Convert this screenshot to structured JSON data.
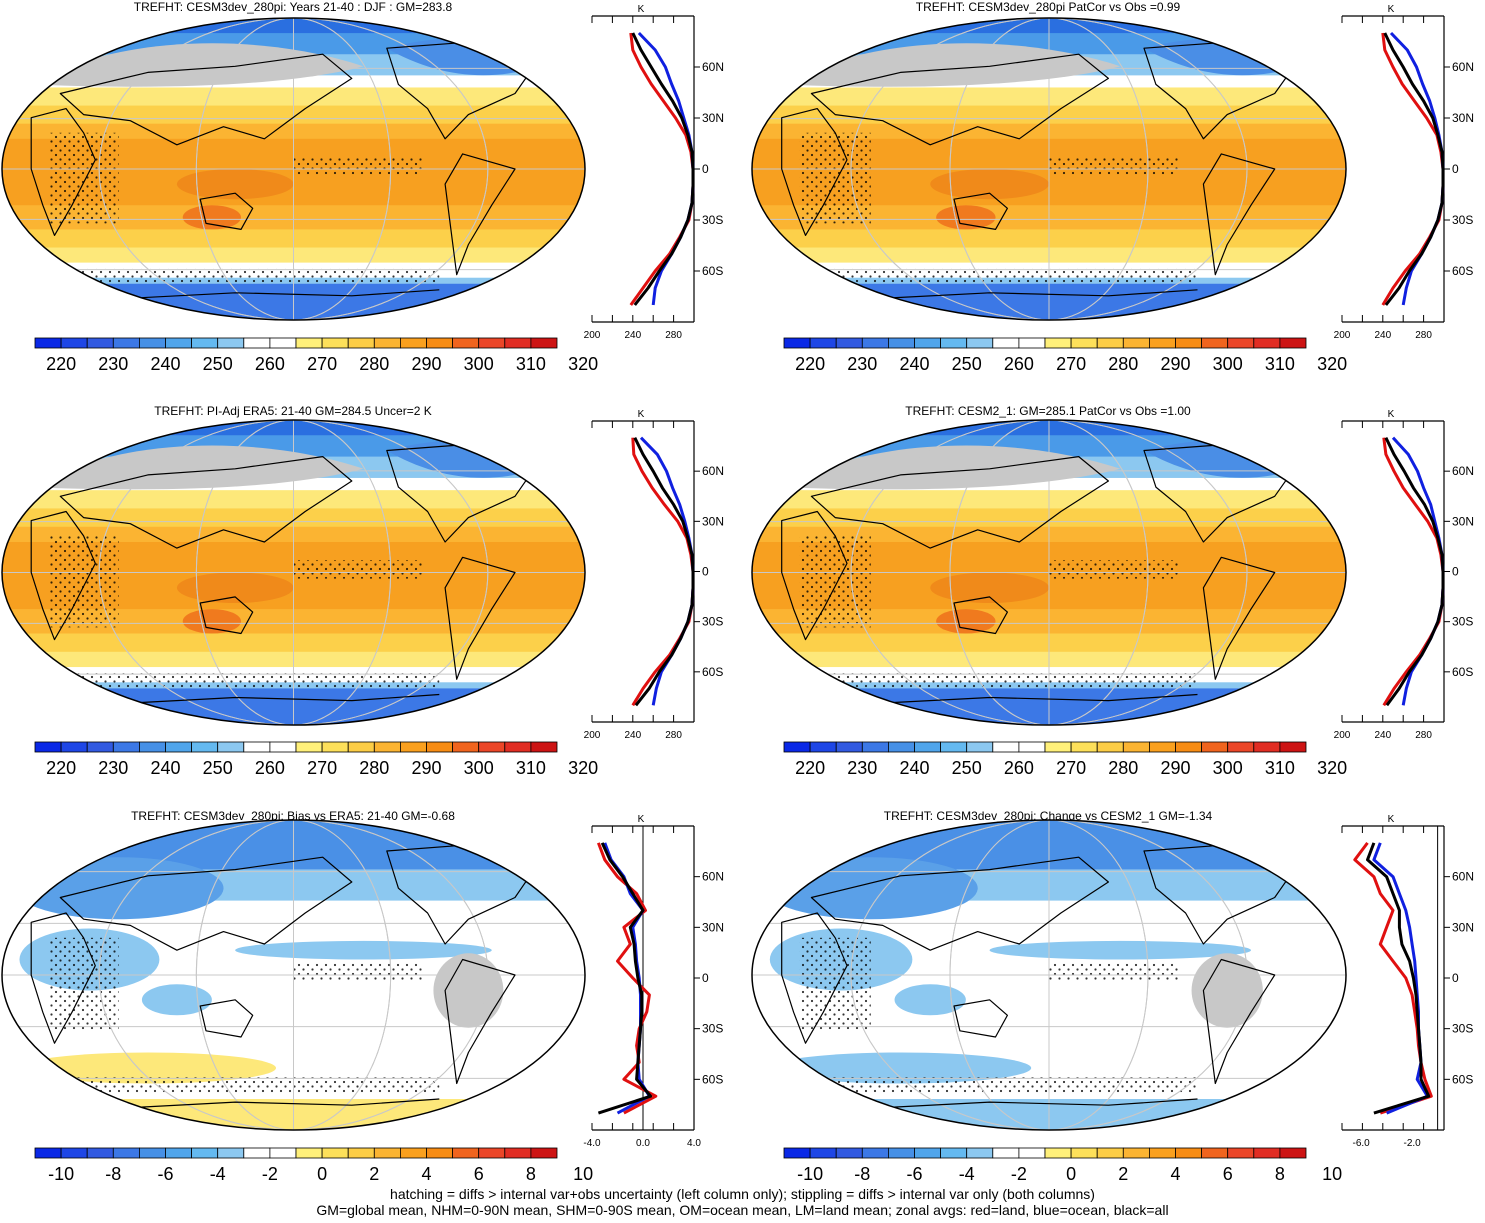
{
  "panels": [
    {
      "title": "TREFHT: CESM3dev_280pi: Years 21-40 : DJF : GM=283.8",
      "colorbar": {
        "labels": [
          "220",
          "230",
          "240",
          "250",
          "260",
          "270",
          "280",
          "290",
          "300",
          "310",
          "320"
        ]
      },
      "zonal": {
        "unit": "K",
        "lat_labels": [
          "60N",
          "30N",
          "0",
          "30S",
          "60S"
        ],
        "x_labels": [
          "200",
          "240",
          "280"
        ]
      }
    },
    {
      "title": "TREFHT: CESM3dev_280pi PatCor vs Obs =0.99",
      "colorbar": {
        "labels": [
          "220",
          "230",
          "240",
          "250",
          "260",
          "270",
          "280",
          "290",
          "300",
          "310",
          "320"
        ]
      },
      "zonal": {
        "unit": "K",
        "lat_labels": [
          "60N",
          "30N",
          "0",
          "30S",
          "60S"
        ],
        "x_labels": [
          "200",
          "240",
          "280"
        ]
      }
    },
    {
      "title": "TREFHT: PI-Adj ERA5: 21-40 GM=284.5 Uncer=2 K",
      "colorbar": {
        "labels": [
          "220",
          "230",
          "240",
          "250",
          "260",
          "270",
          "280",
          "290",
          "300",
          "310",
          "320"
        ]
      },
      "zonal": {
        "unit": "K",
        "lat_labels": [
          "60N",
          "30N",
          "0",
          "30S",
          "60S"
        ],
        "x_labels": [
          "200",
          "240",
          "280"
        ]
      }
    },
    {
      "title": "TREFHT: CESM2_1: GM=285.1 PatCor vs Obs =1.00",
      "colorbar": {
        "labels": [
          "220",
          "230",
          "240",
          "250",
          "260",
          "270",
          "280",
          "290",
          "300",
          "310",
          "320"
        ]
      },
      "zonal": {
        "unit": "K",
        "lat_labels": [
          "60N",
          "30N",
          "0",
          "30S",
          "60S"
        ],
        "x_labels": [
          "200",
          "240",
          "280"
        ]
      }
    },
    {
      "title": "TREFHT: CESM3dev_280pi: Bias vs ERA5: 21-40 GM=-0.68",
      "colorbar": {
        "labels": [
          "-10",
          "-8",
          "-6",
          "-4",
          "-2",
          "0",
          "2",
          "4",
          "6",
          "8",
          "10"
        ]
      },
      "zonal": {
        "unit": "K",
        "lat_labels": [
          "60N",
          "30N",
          "0",
          "30S",
          "60S"
        ],
        "x_labels": [
          "-4.0",
          "0.0",
          "4.0"
        ]
      }
    },
    {
      "title": "TREFHT: CESM3dev_280pi: Change vs CESM2_1 GM=-1.34",
      "colorbar": {
        "labels": [
          "-10",
          "-8",
          "-6",
          "-4",
          "-2",
          "0",
          "2",
          "4",
          "6",
          "8",
          "10"
        ]
      },
      "zonal": {
        "unit": "K",
        "lat_labels": [
          "60N",
          "30N",
          "0",
          "30S",
          "60S"
        ],
        "x_labels": [
          "-6.0",
          "-2.0"
        ]
      }
    }
  ],
  "footer": {
    "line1": "hatching = diffs > internal var+obs uncertainty (left column only); stippling = diffs > internal var only (both columns)",
    "line2": "GM=global mean, NHM=0-90N mean, SHM=0-90S mean, OM=ocean mean, LM=land mean; zonal avgs: red=land, blue=ocean, black=all"
  },
  "colors": {
    "abs_scale": [
      "#0a28e6",
      "#1e46e6",
      "#325ae1",
      "#3c78e6",
      "#4690e6",
      "#50a5eb",
      "#64b9f0",
      "#8cc8f0",
      "#ffffff",
      "#ffffff",
      "#fff07a",
      "#fde05a",
      "#fccd46",
      "#fbb432",
      "#faa01e",
      "#f78c14",
      "#f0641e",
      "#eb4628",
      "#e12d23",
      "#cd1414"
    ],
    "diff_scale": [
      "#0a28e6",
      "#1e46e6",
      "#325ae1",
      "#3c78e6",
      "#4690e6",
      "#50a5eb",
      "#64b9f0",
      "#8cc8f0",
      "#ffffff",
      "#ffffff",
      "#fff07a",
      "#fde05a",
      "#fccd46",
      "#fbb432",
      "#faa01e",
      "#f78c14",
      "#f0641e",
      "#eb4628",
      "#e12d23",
      "#cd1414"
    ],
    "land_line": "#e01010",
    "ocean_line": "#1020e0",
    "all_line": "#000000"
  },
  "chart_data": [
    {
      "type": "heatmap",
      "title": "TREFHT: CESM3dev_280pi: Years 21-40 : DJF : GM=283.8",
      "colorbar_range": [
        220,
        320
      ],
      "zonal_mean": {
        "unit": "K",
        "xlim": [
          200,
          300
        ],
        "lat": [
          80,
          70,
          60,
          50,
          40,
          30,
          20,
          10,
          0,
          -10,
          -20,
          -30,
          -40,
          -50,
          -60,
          -70,
          -80
        ],
        "series": [
          {
            "name": "land",
            "values": [
              238,
              240,
              248,
              258,
              270,
              282,
              292,
              297,
              299,
              299,
              298,
              295,
              286,
              276,
              262,
              250,
              238
            ]
          },
          {
            "name": "ocean",
            "values": [
              246,
              262,
              272,
              278,
              285,
              290,
              295,
              298,
              299,
              299,
              298,
              294,
              287,
              278,
              268,
              262,
              260
            ]
          },
          {
            "name": "all",
            "values": [
              240,
              248,
              258,
              268,
              279,
              288,
              294,
              298,
              299,
              299,
              298,
              294,
              287,
              278,
              266,
              255,
              242
            ]
          }
        ]
      }
    },
    {
      "type": "heatmap",
      "title": "TREFHT: CESM3dev_280pi PatCor vs Obs =0.99",
      "colorbar_range": [
        220,
        320
      ],
      "zonal_mean": {
        "unit": "K",
        "xlim": [
          200,
          300
        ],
        "lat": [
          80,
          70,
          60,
          50,
          40,
          30,
          20,
          10,
          0,
          -10,
          -20,
          -30,
          -40,
          -50,
          -60,
          -70,
          -80
        ],
        "series": [
          {
            "name": "land",
            "values": [
              240,
              242,
              250,
              259,
              271,
              283,
              293,
              297,
              299,
              299,
              298,
              295,
              286,
              276,
              262,
              250,
              240
            ]
          },
          {
            "name": "ocean",
            "values": [
              248,
              264,
              273,
              279,
              286,
              291,
              295,
              298,
              299,
              299,
              298,
              294,
              287,
              278,
              268,
              263,
              260
            ]
          },
          {
            "name": "all",
            "values": [
              242,
              250,
              260,
              269,
              280,
              289,
              294,
              298,
              299,
              299,
              298,
              294,
              287,
              278,
              266,
              256,
              243
            ]
          }
        ]
      }
    },
    {
      "type": "heatmap",
      "title": "TREFHT: PI-Adj ERA5: 21-40 GM=284.5 Uncer=2 K",
      "colorbar_range": [
        220,
        320
      ],
      "zonal_mean": {
        "unit": "K",
        "xlim": [
          200,
          300
        ],
        "lat": [
          80,
          70,
          60,
          50,
          40,
          30,
          20,
          10,
          0,
          -10,
          -20,
          -30,
          -40,
          -50,
          -60,
          -70,
          -80
        ],
        "series": [
          {
            "name": "land",
            "values": [
              240,
              241,
              249,
              259,
              271,
              284,
              293,
              297,
              299,
              299,
              298,
              295,
              286,
              276,
              262,
              250,
              240
            ]
          },
          {
            "name": "ocean",
            "values": [
              248,
              264,
              273,
              279,
              286,
              291,
              295,
              298,
              299,
              299,
              298,
              294,
              287,
              278,
              268,
              263,
              260
            ]
          },
          {
            "name": "all",
            "values": [
              242,
              250,
              260,
              269,
              280,
              289,
              294,
              298,
              299,
              299,
              298,
              294,
              287,
              278,
              266,
              256,
              243
            ]
          }
        ]
      }
    },
    {
      "type": "heatmap",
      "title": "TREFHT: CESM2_1: GM=285.1 PatCor vs Obs =1.00",
      "colorbar_range": [
        220,
        320
      ],
      "zonal_mean": {
        "unit": "K",
        "xlim": [
          200,
          300
        ],
        "lat": [
          80,
          70,
          60,
          50,
          40,
          30,
          20,
          10,
          0,
          -10,
          -20,
          -30,
          -40,
          -50,
          -60,
          -70,
          -80
        ],
        "series": [
          {
            "name": "land",
            "values": [
              241,
              243,
              251,
              260,
              272,
              284,
              293,
              297,
              299,
              299,
              298,
              295,
              286,
              276,
              263,
              251,
              241
            ]
          },
          {
            "name": "ocean",
            "values": [
              250,
              265,
              274,
              280,
              287,
              291,
              295,
              298,
              299,
              299,
              298,
              294,
              287,
              278,
              268,
              263,
              260
            ]
          },
          {
            "name": "all",
            "values": [
              243,
              251,
              261,
              270,
              281,
              289,
              294,
              298,
              299,
              299,
              298,
              294,
              287,
              278,
              266,
              256,
              244
            ]
          }
        ]
      }
    },
    {
      "type": "heatmap",
      "title": "TREFHT: CESM3dev_280pi: Bias vs ERA5: 21-40 GM=-0.68",
      "colorbar_range": [
        -10,
        10
      ],
      "zonal_mean": {
        "unit": "K",
        "xlim": [
          -4,
          4
        ],
        "lat": [
          80,
          70,
          60,
          50,
          40,
          30,
          20,
          10,
          0,
          -10,
          -20,
          -30,
          -40,
          -50,
          -60,
          -70,
          -80
        ],
        "series": [
          {
            "name": "land",
            "values": [
              -3.5,
              -3.0,
              -2.0,
              -0.5,
              0.2,
              -1.5,
              -1.0,
              -2.0,
              -0.8,
              0.5,
              0.3,
              -0.3,
              -0.5,
              -0.3,
              -1.5,
              1.0,
              -1.5
            ]
          },
          {
            "name": "ocean",
            "values": [
              -3.0,
              -2.5,
              -1.5,
              -1.0,
              0.0,
              -0.8,
              -0.6,
              -0.5,
              -0.3,
              -0.2,
              -0.2,
              -0.2,
              -0.3,
              -0.4,
              -0.3,
              0.5,
              -2.0
            ]
          },
          {
            "name": "all",
            "values": [
              -3.2,
              -2.6,
              -1.6,
              -0.8,
              0.0,
              -1.0,
              -0.7,
              -0.6,
              -0.4,
              -0.1,
              -0.1,
              -0.2,
              -0.3,
              -0.4,
              -0.5,
              0.6,
              -3.5
            ]
          }
        ]
      }
    },
    {
      "type": "heatmap",
      "title": "TREFHT: CESM3dev_280pi: Change vs CESM2_1 GM=-1.34",
      "colorbar_range": [
        -10,
        10
      ],
      "zonal_mean": {
        "unit": "K",
        "xlim": [
          -7.5,
          0.5
        ],
        "lat": [
          80,
          70,
          60,
          50,
          40,
          30,
          20,
          10,
          0,
          -10,
          -20,
          -30,
          -40,
          -50,
          -60,
          -70,
          -80
        ],
        "series": [
          {
            "name": "land",
            "values": [
              -5.5,
              -6.5,
              -5.0,
              -4.5,
              -3.5,
              -4.0,
              -4.5,
              -3.5,
              -2.5,
              -2.0,
              -1.8,
              -1.6,
              -1.5,
              -1.3,
              -1.0,
              -0.5,
              -4.5
            ]
          },
          {
            "name": "ocean",
            "values": [
              -4.5,
              -5.0,
              -3.5,
              -3.0,
              -2.5,
              -2.2,
              -2.0,
              -1.8,
              -1.7,
              -1.6,
              -1.5,
              -1.5,
              -1.4,
              -1.3,
              -1.6,
              -0.8,
              -4.0
            ]
          },
          {
            "name": "all",
            "values": [
              -5.0,
              -5.5,
              -4.0,
              -3.5,
              -3.0,
              -3.0,
              -2.8,
              -2.2,
              -1.9,
              -1.7,
              -1.6,
              -1.5,
              -1.4,
              -1.3,
              -1.3,
              -0.7,
              -5.0
            ]
          }
        ]
      }
    }
  ]
}
